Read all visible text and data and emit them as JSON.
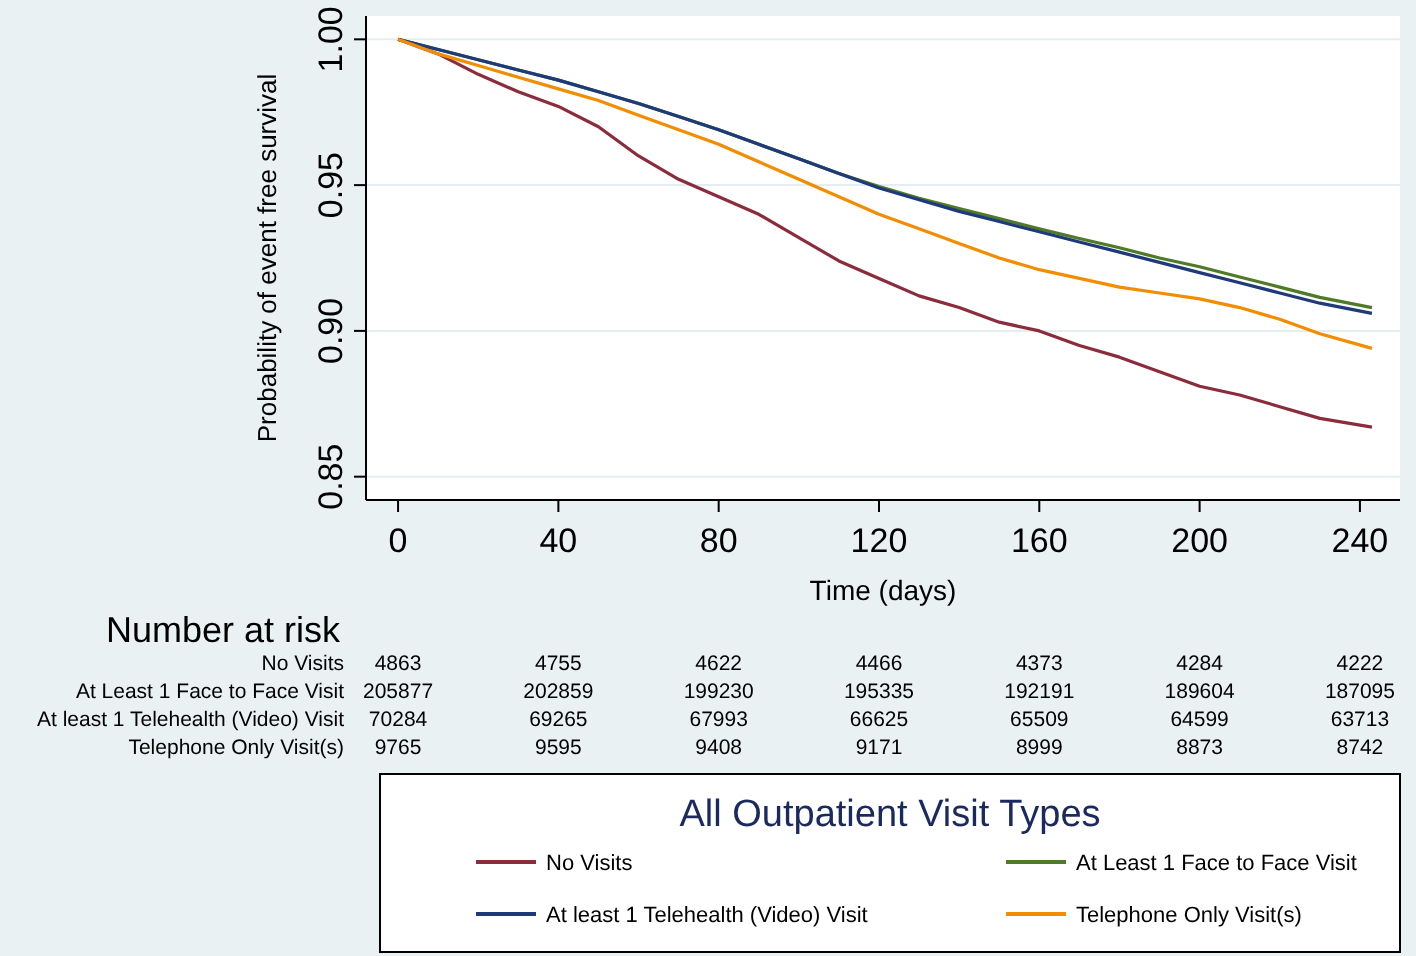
{
  "chart_data": {
    "type": "line",
    "xlabel": "Time (days)",
    "ylabel": "Probability of event free survival",
    "legend_title": "All Outpatient Visit Types",
    "legend": "bottom",
    "grid": "y",
    "line_style": "solid",
    "marker": "none",
    "x": [
      0,
      10,
      20,
      30,
      40,
      50,
      60,
      70,
      80,
      90,
      100,
      110,
      120,
      130,
      140,
      150,
      160,
      170,
      180,
      190,
      200,
      210,
      220,
      230,
      243
    ],
    "xlim": [
      -8,
      250
    ],
    "xticks": [
      0,
      40,
      80,
      120,
      160,
      200,
      240
    ],
    "ylim": [
      0.842,
      1.008
    ],
    "yticks": [
      {
        "value": 0.85,
        "label": "0.85"
      },
      {
        "value": 0.9,
        "label": "0.90"
      },
      {
        "value": 0.95,
        "label": "0.95"
      },
      {
        "value": 1,
        "label": "1.00"
      }
    ],
    "series": [
      {
        "name": "No Visits",
        "color": "#8b2c3c",
        "values": [
          1,
          0.995,
          0.988,
          0.982,
          0.977,
          0.97,
          0.96,
          0.952,
          0.946,
          0.94,
          0.932,
          0.924,
          0.918,
          0.912,
          0.908,
          0.903,
          0.9,
          0.895,
          0.891,
          0.886,
          0.881,
          0.878,
          0.874,
          0.87,
          0.867
        ]
      },
      {
        "name": "At Least 1 Face to Face Visit",
        "color": "#4f7a28",
        "values": [
          1,
          0.9965,
          0.993,
          0.9895,
          0.986,
          0.982,
          0.978,
          0.9735,
          0.969,
          0.964,
          0.959,
          0.954,
          0.9495,
          0.9455,
          0.942,
          0.9385,
          0.935,
          0.9317,
          0.9285,
          0.925,
          0.922,
          0.9185,
          0.915,
          0.9115,
          0.908
        ]
      },
      {
        "name": "At least 1 Telehealth (Video) Visit",
        "color": "#1e3a7a",
        "values": [
          1,
          0.9965,
          0.993,
          0.9895,
          0.986,
          0.982,
          0.978,
          0.9735,
          0.969,
          0.964,
          0.959,
          0.954,
          0.949,
          0.945,
          0.941,
          0.9375,
          0.934,
          0.9305,
          0.927,
          0.9235,
          0.92,
          0.9165,
          0.913,
          0.9095,
          0.906
        ]
      },
      {
        "name": "Telephone Only Visit(s)",
        "color": "#f28c00",
        "values": [
          1,
          0.995,
          0.991,
          0.987,
          0.983,
          0.979,
          0.974,
          0.969,
          0.964,
          0.958,
          0.952,
          0.946,
          0.94,
          0.935,
          0.93,
          0.925,
          0.921,
          0.918,
          0.915,
          0.913,
          0.911,
          0.908,
          0.904,
          0.899,
          0.894
        ]
      }
    ],
    "annotations": [
      "Number at risk",
      "No Visits",
      "4863",
      "4755",
      "4622",
      "4466",
      "4373",
      "4284",
      "4222",
      "At Least 1 Face to Face Visit",
      "205877",
      "202859",
      "199230",
      "195335",
      "192191",
      "189604",
      "187095",
      "At least 1 Telehealth (Video) Visit",
      "70284",
      "69265",
      "67993",
      "66625",
      "65509",
      "64599",
      "63713",
      "Telephone Only Visit(s)",
      "9765",
      "9595",
      "9408",
      "9171",
      "8999",
      "8873",
      "8742"
    ]
  }
}
